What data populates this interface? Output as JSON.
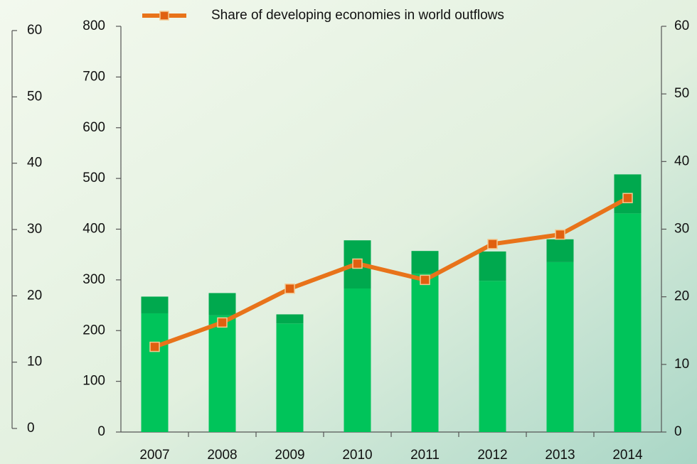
{
  "chart_data": {
    "type": "bar",
    "categories": [
      "2007",
      "2008",
      "2009",
      "2010",
      "2011",
      "2012",
      "2013",
      "2014"
    ],
    "series": [
      {
        "color": "#00c45a",
        "values": [
          234,
          230,
          214,
          283,
          312,
          298,
          335,
          431
        ]
      },
      {
        "color": "#00a94e",
        "values": [
          33,
          44,
          18,
          95,
          45,
          58,
          45,
          77
        ]
      },
      {
        "name": "Share of developing economies in world outflows",
        "type": "line",
        "axis": "y2",
        "color": "#e8731a",
        "marker_color": "#e06010",
        "values": [
          12.6,
          16.2,
          21.2,
          24.9,
          22.5,
          27.8,
          29.2,
          34.6
        ]
      }
    ],
    "stacked": true,
    "ylim": [
      0,
      800
    ],
    "yticks": [
      0,
      100,
      200,
      300,
      400,
      500,
      600,
      700,
      800
    ],
    "y2lim": [
      0,
      60
    ],
    "y2ticks": [
      0,
      10,
      20,
      30,
      40,
      50,
      60
    ],
    "y3lim": [
      0,
      60
    ],
    "y3ticks": [
      0,
      10,
      20,
      30,
      40,
      50,
      60
    ],
    "legend": "top"
  }
}
